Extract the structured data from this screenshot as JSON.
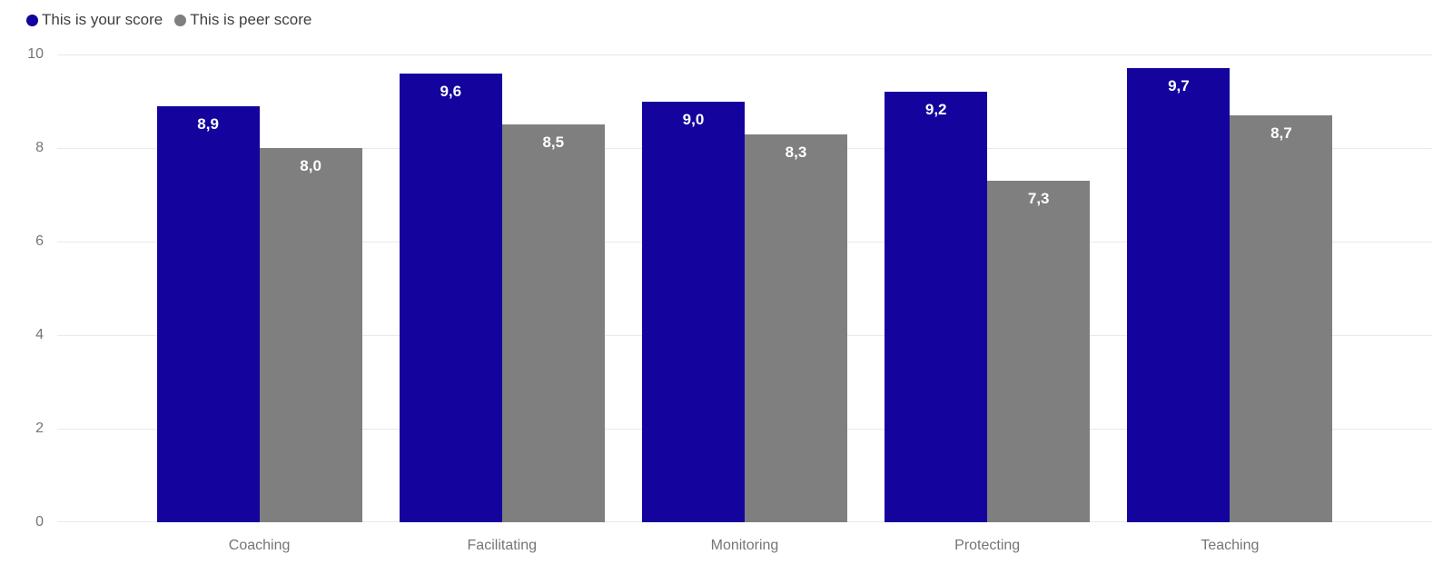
{
  "chart_data": {
    "type": "bar",
    "categories": [
      "Coaching",
      "Facilitating",
      "Monitoring",
      "Protecting",
      "Teaching"
    ],
    "series": [
      {
        "id": "your-score",
        "name": "This is your score",
        "color": "#14049D",
        "values": [
          8.9,
          9.6,
          9.0,
          9.2,
          9.7
        ],
        "labels": [
          "8,9",
          "9,6",
          "9,0",
          "9,2",
          "9,7"
        ]
      },
      {
        "id": "peer-score",
        "name": "This is peer score",
        "color": "#7F7F7F",
        "values": [
          8.0,
          8.5,
          8.3,
          7.3,
          8.7
        ],
        "labels": [
          "8,0",
          "8,5",
          "8,3",
          "7,3",
          "8,7"
        ]
      }
    ],
    "title": "",
    "xlabel": "",
    "ylabel": "",
    "ylim": [
      0,
      10
    ],
    "y_ticks": [
      0,
      2,
      4,
      6,
      8,
      10
    ],
    "grid": true,
    "legend_position": "top-left",
    "colors": {
      "gridline": "#e9e9e9",
      "axis_text": "#757575",
      "legend_text": "#3f3f3f",
      "value_label": "#ffffff",
      "background": "#ffffff"
    }
  }
}
